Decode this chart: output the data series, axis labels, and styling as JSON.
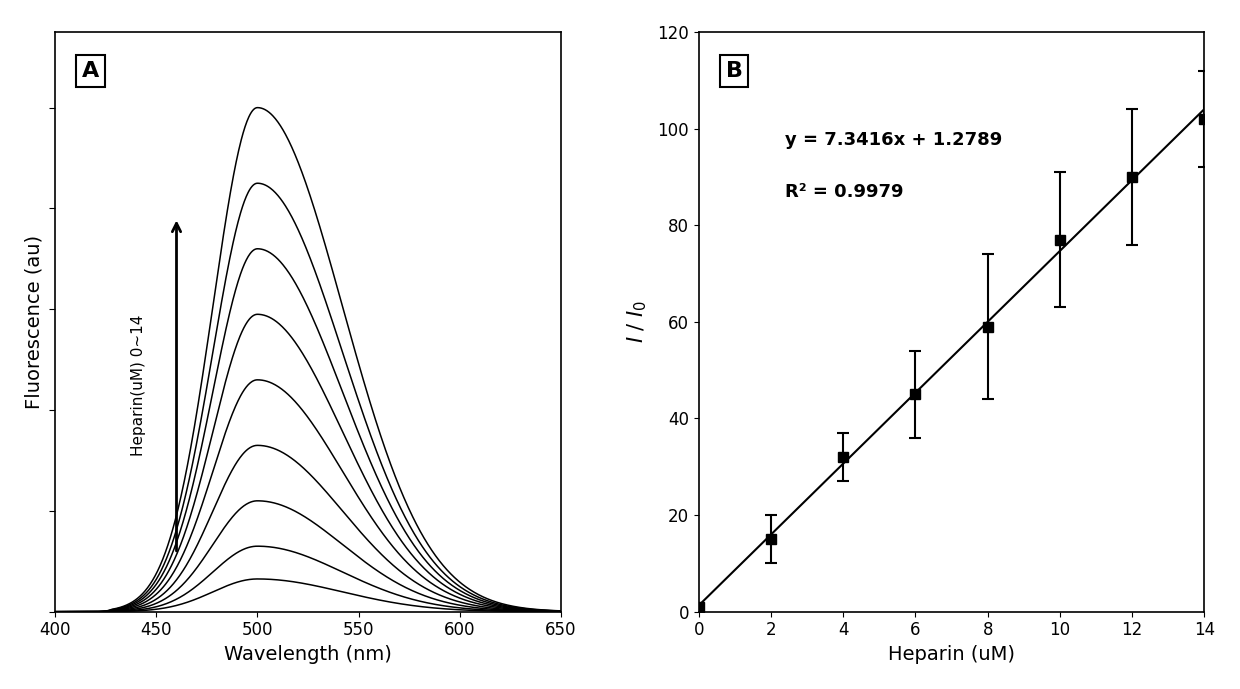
{
  "panel_A_label": "A",
  "panel_B_label": "B",
  "xlim_A": [
    400,
    650
  ],
  "ylim_A": [
    0,
    1.15
  ],
  "xlim_B": [
    0,
    14
  ],
  "ylim_B": [
    0,
    120
  ],
  "xticks_A": [
    400,
    450,
    500,
    550,
    600,
    650
  ],
  "xticks_B": [
    0,
    2,
    4,
    6,
    8,
    10,
    12,
    14
  ],
  "yticks_B": [
    0,
    20,
    40,
    60,
    80,
    100,
    120
  ],
  "equation_text": "y = 7.3416x + 1.2789",
  "r2_text": "R² = 0.9979",
  "peak_wavelength": 500,
  "scatter_x": [
    0,
    2,
    4,
    6,
    8,
    10,
    12,
    14
  ],
  "scatter_y": [
    1,
    15,
    32,
    45,
    59,
    77,
    90,
    102
  ],
  "scatter_yerr": [
    0.5,
    5,
    5,
    9,
    15,
    14,
    14,
    10
  ],
  "fit_slope": 7.3416,
  "fit_intercept": 1.2789,
  "curve_peaks": [
    0.065,
    0.13,
    0.22,
    0.33,
    0.46,
    0.59,
    0.72,
    0.85,
    1.0
  ],
  "background_color": "#ffffff",
  "line_color": "#000000",
  "label_fontsize": 14,
  "tick_fontsize": 12,
  "annot_fontsize": 11
}
